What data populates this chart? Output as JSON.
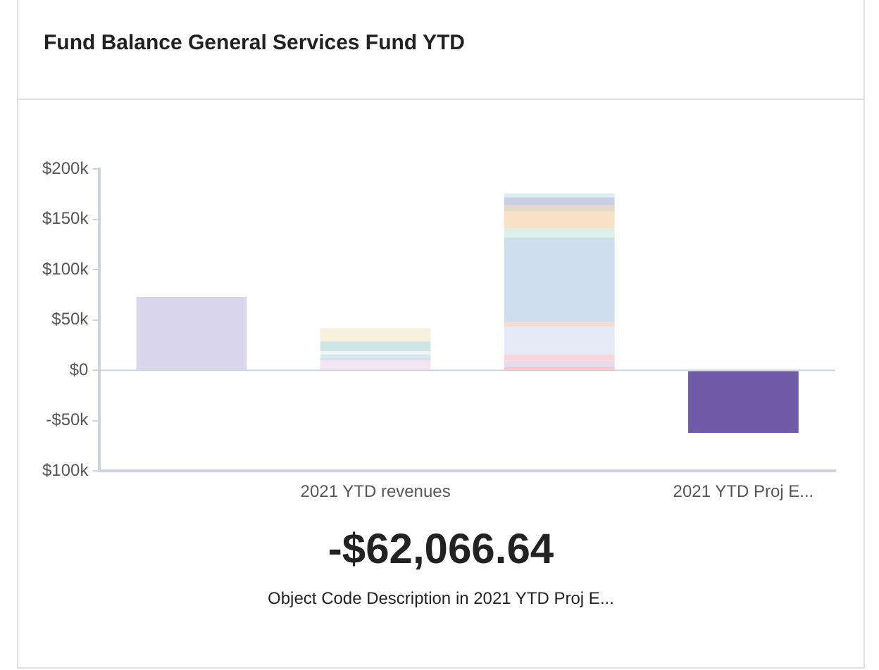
{
  "chart_data": {
    "type": "bar",
    "title": "Fund Balance General Services Fund YTD",
    "annotations": [
      "-$62,066.64",
      "Object Code Description in 2021 YTD Proj E..."
    ],
    "categories": [
      null,
      "2021 YTD revenues",
      null,
      "2021 YTD Proj E..."
    ],
    "stacked": true,
    "series": [
      {
        "color": "#d9d5ea",
        "values": [
          73000,
          null,
          null,
          null
        ]
      },
      {
        "color": "#f3e6f2",
        "values": [
          null,
          10000,
          null,
          null
        ]
      },
      {
        "color": "#d3e2ee",
        "values": [
          null,
          3000,
          null,
          null
        ]
      },
      {
        "color": "#d4ebea",
        "values": [
          null,
          3000,
          null,
          null
        ]
      },
      {
        "color": "#f1f4f4",
        "values": [
          null,
          3000,
          null,
          null
        ]
      },
      {
        "color": "#cfe6e4",
        "values": [
          null,
          10000,
          null,
          null
        ]
      },
      {
        "color": "#f7f0dc",
        "values": [
          null,
          13000,
          null,
          null
        ]
      },
      {
        "color": "#f0c8c8",
        "values": [
          null,
          null,
          3500,
          null
        ]
      },
      {
        "color": "#e6dcee",
        "values": [
          null,
          null,
          6000,
          null
        ]
      },
      {
        "color": "#f5d6da",
        "values": [
          null,
          null,
          6000,
          null
        ]
      },
      {
        "color": "#e3eaf6",
        "values": [
          null,
          null,
          28000,
          null
        ]
      },
      {
        "color": "#f7dcd0",
        "values": [
          null,
          null,
          4500,
          null
        ]
      },
      {
        "color": "#cfdeec",
        "values": [
          null,
          null,
          84000,
          null
        ]
      },
      {
        "color": "#dcefe8",
        "values": [
          null,
          null,
          9000,
          null
        ]
      },
      {
        "color": "#f7e2c8",
        "values": [
          null,
          null,
          17000,
          null
        ]
      },
      {
        "color": "#e4d8c8",
        "values": [
          null,
          null,
          6000,
          null
        ]
      },
      {
        "color": "#c9cfe6",
        "values": [
          null,
          null,
          8000,
          null
        ]
      },
      {
        "color": "#d8eef0",
        "values": [
          null,
          null,
          4000,
          null
        ]
      },
      {
        "color": "#6f5ba7",
        "values": [
          null,
          null,
          null,
          -62066.64
        ]
      }
    ],
    "ylim": [
      -100000,
      200000
    ],
    "yticks": [
      {
        "value": -100000,
        "label": "$100k"
      },
      {
        "value": -50000,
        "label": "-$50k"
      },
      {
        "value": 0,
        "label": "$0"
      },
      {
        "value": 50000,
        "label": "$50k"
      },
      {
        "value": 100000,
        "label": "$100k"
      },
      {
        "value": 150000,
        "label": "$150k"
      },
      {
        "value": 200000,
        "label": "$200k"
      }
    ],
    "ref_lines": [
      {
        "axis": "y",
        "value": 0,
        "color": "#ccd3dc"
      }
    ],
    "grid": false,
    "legend": false
  }
}
